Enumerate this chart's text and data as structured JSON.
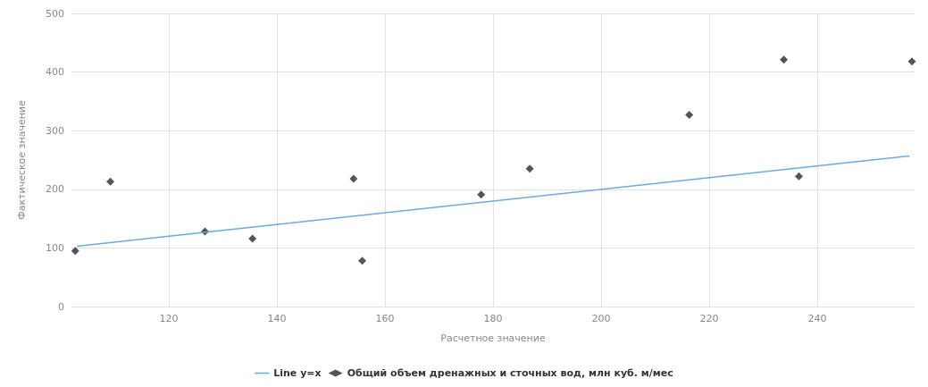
{
  "chart_data": {
    "type": "scatter",
    "xlabel": "Расчетное значение",
    "ylabel": "Фактическое значение",
    "xlim": [
      102,
      258
    ],
    "xticks": [
      120,
      140,
      160,
      180,
      200,
      220,
      240
    ],
    "ylim": [
      0,
      500
    ],
    "yticks": [
      0,
      100,
      200,
      300,
      400,
      500
    ],
    "grid": true,
    "legend": "bottom",
    "series": [
      {
        "name": "Line y=x",
        "type": "line",
        "color": "#6fa8dc",
        "marker": "none",
        "x": [
          103,
          257
        ],
        "values": [
          103,
          257
        ]
      },
      {
        "name": "Общий объем дренажных и сточных вод, млн куб. м/мес",
        "color": "#2b2b2b",
        "marker": "diamond",
        "x": [
          102.7,
          109.2,
          126.7,
          135.5,
          154.2,
          155.8,
          177.8,
          186.8,
          216.3,
          233.8,
          236.6,
          257.5
        ],
        "values": [
          95,
          213,
          128,
          116,
          218,
          78,
          191,
          235,
          327,
          421,
          222,
          418
        ]
      }
    ]
  }
}
